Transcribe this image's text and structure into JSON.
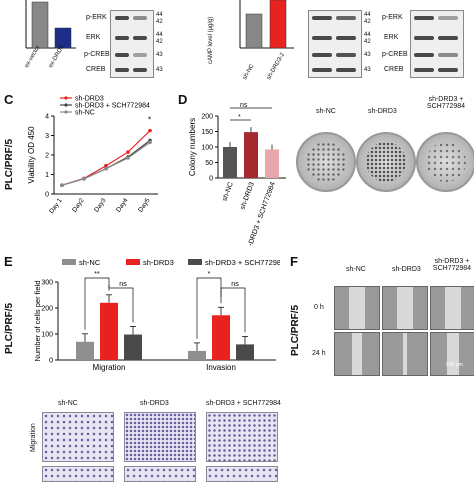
{
  "panels": {
    "C": "C",
    "D": "D",
    "E": "E",
    "F": "F"
  },
  "top": {
    "a_ylabel": "cAMP level (μg/g)",
    "a_cats": [
      "ex-vector",
      "ex-DRD3"
    ],
    "a_blots": [
      "p-ERK",
      "ERK",
      "p-CREB",
      "CREB"
    ],
    "a_kda": [
      "44",
      "42",
      "44",
      "42",
      "43",
      "43"
    ],
    "b_ylabel": "cAMP level (μg/g)",
    "b_cats": [
      "sh-NC",
      "sh-DRD3-2"
    ],
    "b_blots": [
      "p-ERK",
      "ERK",
      "p-CREB",
      "CREB"
    ],
    "b_kda": [
      "44",
      "42",
      "44",
      "42",
      "43",
      "43"
    ]
  },
  "c": {
    "side": "PLC/PRF/5",
    "legend": [
      "sh-DRD3",
      "sh-DRD3 + SCH772984",
      "sh-NC"
    ],
    "star": "*",
    "colors": [
      "#e8231f",
      "#444444",
      "#8a8a8a"
    ]
  },
  "d": {
    "ns": "ns",
    "star": "*",
    "dish_labels": [
      "sh-NC",
      "sh-DRD3",
      "sh-DRD3 + SCH772984"
    ]
  },
  "e": {
    "side": "PLC/PRF/5",
    "legend": [
      "sh-NC",
      "sh-DRD3",
      "sh-DRD3 + SCH772984"
    ],
    "sig": [
      "**",
      "ns",
      "*",
      "ns"
    ],
    "img_cols": [
      "sh-NC",
      "sh-DRD3",
      "sh-DRD3 + SCH772984"
    ],
    "img_row": "Migration"
  },
  "f": {
    "cols": [
      "sh-NC",
      "sh-DRD3",
      "sh-DRD3 + SCH772984"
    ],
    "rows": [
      "0 h",
      "24 h"
    ],
    "scale": "500 μm"
  },
  "chart_data": [
    {
      "type": "line",
      "ylabel": "Viability OD 450",
      "categories": [
        "Day 1",
        "Day2",
        "Day3",
        "Day4",
        "Day5"
      ],
      "ylim": [
        0,
        4
      ],
      "yticks": [
        0,
        1,
        2,
        3,
        4
      ],
      "series": [
        {
          "name": "sh-DRD3",
          "values": [
            0.45,
            0.8,
            1.45,
            2.15,
            3.25
          ]
        },
        {
          "name": "sh-DRD3 + SCH772984",
          "values": [
            0.45,
            0.78,
            1.3,
            1.9,
            2.75
          ]
        },
        {
          "name": "sh-NC",
          "values": [
            0.45,
            0.78,
            1.3,
            1.85,
            2.65
          ]
        }
      ]
    },
    {
      "type": "bar",
      "ylabel": "Colony numbers",
      "categories": [
        "sh-NC",
        "sh-DRD3",
        "sh-DRD3 + SCH772984"
      ],
      "values": [
        100,
        148,
        92
      ],
      "ylim": [
        0,
        200
      ],
      "yticks": [
        0,
        50,
        100,
        150,
        200
      ],
      "colors": [
        "#555555",
        "#a32a2f",
        "#e7a6ab"
      ]
    },
    {
      "type": "bar",
      "ylabel": "Number of cells per field",
      "categories": [
        "Migration",
        "Invasion"
      ],
      "ylim": [
        0,
        300
      ],
      "yticks": [
        0,
        100,
        200,
        300
      ],
      "series": [
        {
          "name": "sh-NC",
          "values": [
            70,
            35
          ]
        },
        {
          "name": "sh-DRD3",
          "values": [
            220,
            172
          ]
        },
        {
          "name": "sh-DRD3 + SCH772984",
          "values": [
            98,
            60
          ]
        }
      ],
      "colors": [
        "#8f8f8f",
        "#e8231f",
        "#4a4a4a"
      ]
    }
  ]
}
